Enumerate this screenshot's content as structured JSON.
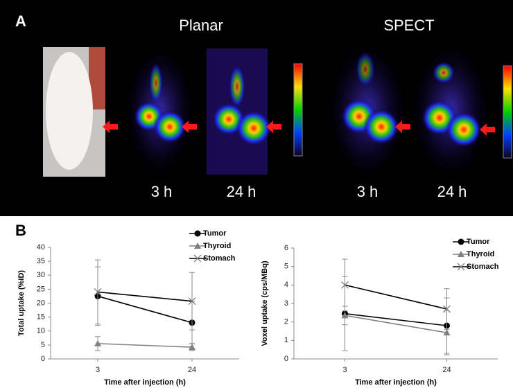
{
  "panel_a": {
    "label": "A",
    "planar_title": "Planar",
    "spect_title": "SPECT",
    "planar_times": [
      "3 h",
      "24 h"
    ],
    "spect_times": [
      "3 h",
      "24 h"
    ]
  },
  "panel_b_label": "B",
  "chart_data": [
    {
      "type": "line",
      "x_label": "Time after injection (h)",
      "y_label": "Total uptake (%ID)",
      "categories": [
        "3",
        "24"
      ],
      "ylim": [
        0,
        40
      ],
      "yticks": [
        0,
        5,
        10,
        15,
        20,
        25,
        30,
        35,
        40
      ],
      "grid": false,
      "legend": "top-right",
      "series": [
        {
          "name": "Tumor",
          "color": "#000000",
          "marker": "circle",
          "values": [
            22.5,
            13
          ],
          "errors": [
            10.5,
            7.5
          ]
        },
        {
          "name": "Thyroid",
          "color": "#808080",
          "marker": "triangle",
          "values": [
            5.5,
            4.2
          ],
          "errors": [
            2.5,
            1.2
          ]
        },
        {
          "name": "Stomach",
          "color": "#000000",
          "marker": "x",
          "values": [
            24,
            20.7
          ],
          "errors": [
            11.5,
            10.3
          ]
        }
      ]
    },
    {
      "type": "line",
      "x_label": "Time after injection (h)",
      "y_label": "Voxel uptake (cps/MBq)",
      "categories": [
        "3",
        "24"
      ],
      "ylim": [
        0,
        6
      ],
      "yticks": [
        0,
        1,
        2,
        3,
        4,
        5,
        6
      ],
      "grid": false,
      "legend": "top-right",
      "series": [
        {
          "name": "Tumor",
          "color": "#000000",
          "marker": "circle",
          "values": [
            2.45,
            1.8
          ],
          "errors": [
            2.0,
            1.5
          ]
        },
        {
          "name": "Thyroid",
          "color": "#808080",
          "marker": "triangle",
          "values": [
            2.35,
            1.42
          ],
          "errors": [
            0.5,
            1.2
          ]
        },
        {
          "name": "Stomach",
          "color": "#000000",
          "marker": "x",
          "values": [
            4.0,
            2.7
          ],
          "errors": [
            1.4,
            1.1
          ]
        }
      ]
    }
  ]
}
